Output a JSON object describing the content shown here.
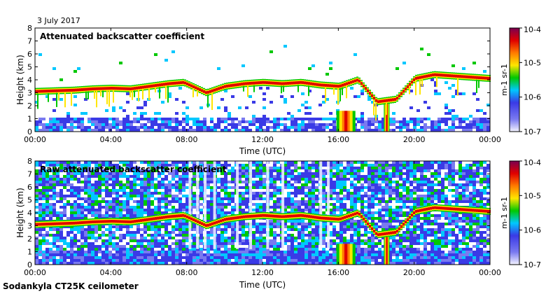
{
  "figure": {
    "date_label": "3 July 2017",
    "instrument_label": "Sodankyla CT25K ceilometer"
  },
  "chart_data": [
    {
      "type": "heatmap",
      "title": "Attenuated backscatter coefficient",
      "xlabel": "Time (UTC)",
      "ylabel": "Height (km)",
      "x_tick_labels": [
        "00:00",
        "04:00",
        "08:00",
        "12:00",
        "16:00",
        "20:00",
        "00:00"
      ],
      "xlim_hours": [
        0,
        24
      ],
      "y_ticks": [
        "0",
        "1",
        "2",
        "3",
        "4",
        "5",
        "6",
        "7",
        "8"
      ],
      "ylim_km": [
        0,
        8
      ],
      "colorbar": {
        "scale": "log",
        "range": [
          1e-07,
          0.0001
        ],
        "tick_labels": [
          "10-7",
          "10-6",
          "10-5",
          "10-4"
        ],
        "units": "m-1 sr-1",
        "colors": [
          "#f4f4ff",
          "#3a3ae6",
          "#00c8ff",
          "#00c800",
          "#ffe600",
          "#ff7a00",
          "#e00000",
          "#7a0050"
        ]
      },
      "cloud_layer_km": {
        "time_hours": [
          0,
          1,
          2,
          3,
          4,
          5,
          6,
          7,
          7.8,
          9,
          10,
          11,
          12,
          13,
          14,
          15,
          16,
          17,
          18,
          19,
          20,
          21,
          22,
          23,
          24
        ],
        "height_km": [
          3.1,
          3.15,
          3.2,
          3.3,
          3.35,
          3.3,
          3.5,
          3.7,
          3.8,
          3.0,
          3.5,
          3.7,
          3.8,
          3.7,
          3.8,
          3.6,
          3.5,
          4.0,
          2.3,
          2.5,
          4.1,
          4.4,
          4.3,
          4.2,
          4.1
        ]
      }
    },
    {
      "type": "heatmap",
      "title": "Raw attenuated backscatter coefficient",
      "xlabel": "Time (UTC)",
      "ylabel": "Height (km)",
      "x_tick_labels": [
        "00:00",
        "04:00",
        "08:00",
        "12:00",
        "16:00",
        "20:00",
        "00:00"
      ],
      "xlim_hours": [
        0,
        24
      ],
      "y_ticks": [
        "0",
        "1",
        "2",
        "3",
        "4",
        "5",
        "6",
        "7",
        "8"
      ],
      "ylim_km": [
        0,
        8
      ],
      "colorbar": {
        "scale": "log",
        "range": [
          1e-07,
          0.0001
        ],
        "tick_labels": [
          "10-7",
          "10-6",
          "10-5",
          "10-4"
        ],
        "units": "m-1 sr-1",
        "colors": [
          "#f4f4ff",
          "#3a3ae6",
          "#00c8ff",
          "#00c800",
          "#ffe600",
          "#ff7a00",
          "#e00000",
          "#7a0050"
        ]
      },
      "cloud_layer_km": {
        "time_hours": [
          0,
          1,
          2,
          3,
          4,
          5,
          6,
          7,
          7.8,
          9,
          10,
          11,
          12,
          13,
          14,
          15,
          16,
          17,
          18,
          19,
          20,
          21,
          22,
          23,
          24
        ],
        "height_km": [
          3.1,
          3.15,
          3.2,
          3.3,
          3.35,
          3.3,
          3.5,
          3.7,
          3.8,
          3.0,
          3.5,
          3.7,
          3.8,
          3.7,
          3.8,
          3.6,
          3.5,
          4.0,
          2.3,
          2.5,
          4.1,
          4.4,
          4.3,
          4.2,
          4.1
        ]
      }
    }
  ]
}
